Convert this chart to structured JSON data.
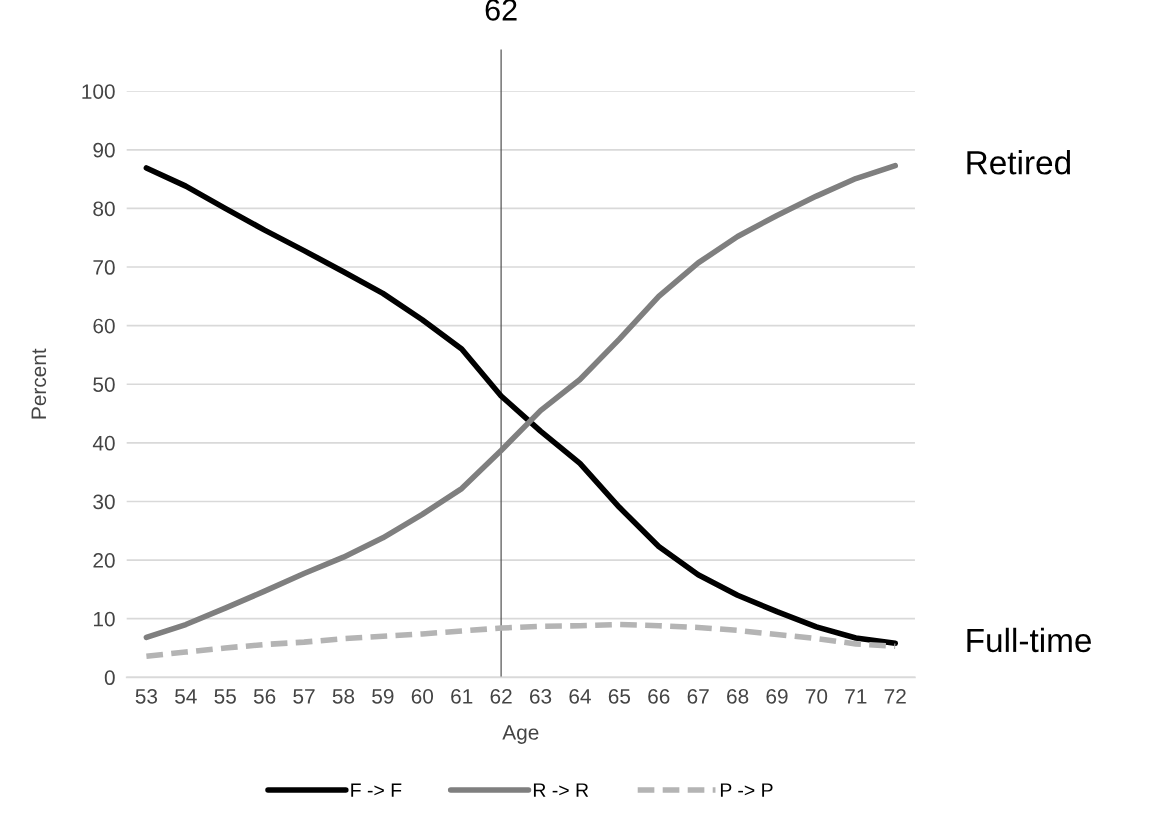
{
  "chart_data": {
    "type": "line",
    "xlabel": "Age",
    "ylabel": "Percent",
    "x": [
      53,
      54,
      55,
      56,
      57,
      58,
      59,
      60,
      61,
      62,
      63,
      64,
      65,
      66,
      67,
      68,
      69,
      70,
      71,
      72
    ],
    "series": [
      {
        "name": "F -> F",
        "color": "#000000",
        "line_style": "solid",
        "values": [
          86.9,
          83.8,
          80,
          76.3,
          72.8,
          69.2,
          65.5,
          61,
          56,
          48,
          42,
          36.5,
          29,
          22.3,
          17.5,
          14,
          11.2,
          8.6,
          6.7,
          5.8
        ]
      },
      {
        "name": "R -> R",
        "color": "#7f7f7f",
        "line_style": "solid",
        "values": [
          6.8,
          9,
          11.8,
          14.7,
          17.7,
          20.5,
          23.8,
          27.8,
          32.2,
          38.7,
          45.5,
          50.8,
          57.7,
          65,
          70.7,
          75.2,
          78.8,
          82.1,
          85.1,
          87.3
        ]
      },
      {
        "name": "P -> P",
        "color": "#b4b4b4",
        "line_style": "dashed",
        "values": [
          3.6,
          4.3,
          5,
          5.6,
          6,
          6.6,
          7,
          7.4,
          7.9,
          8.4,
          8.7,
          8.8,
          9,
          8.8,
          8.5,
          8,
          7.3,
          6.6,
          5.7,
          5.3
        ]
      }
    ],
    "xlim": [
      52.5,
      72.5
    ],
    "xticks": [
      53,
      54,
      55,
      56,
      57,
      58,
      59,
      60,
      61,
      62,
      63,
      64,
      65,
      66,
      67,
      68,
      69,
      70,
      71,
      72
    ],
    "ylim": [
      0,
      100
    ],
    "yticks": [
      0,
      10,
      20,
      30,
      40,
      50,
      60,
      70,
      80,
      90,
      100
    ],
    "grid": "y",
    "legend": "bottom",
    "marker": "none",
    "ref_lines": [
      {
        "axis": "x",
        "value": 62,
        "label": "62",
        "color": "#555555"
      }
    ],
    "annotations": [
      {
        "text": "Retired",
        "x": 72,
        "y": 87.3
      },
      {
        "text": "Full-time",
        "x": 72,
        "y": 5.8
      }
    ]
  }
}
